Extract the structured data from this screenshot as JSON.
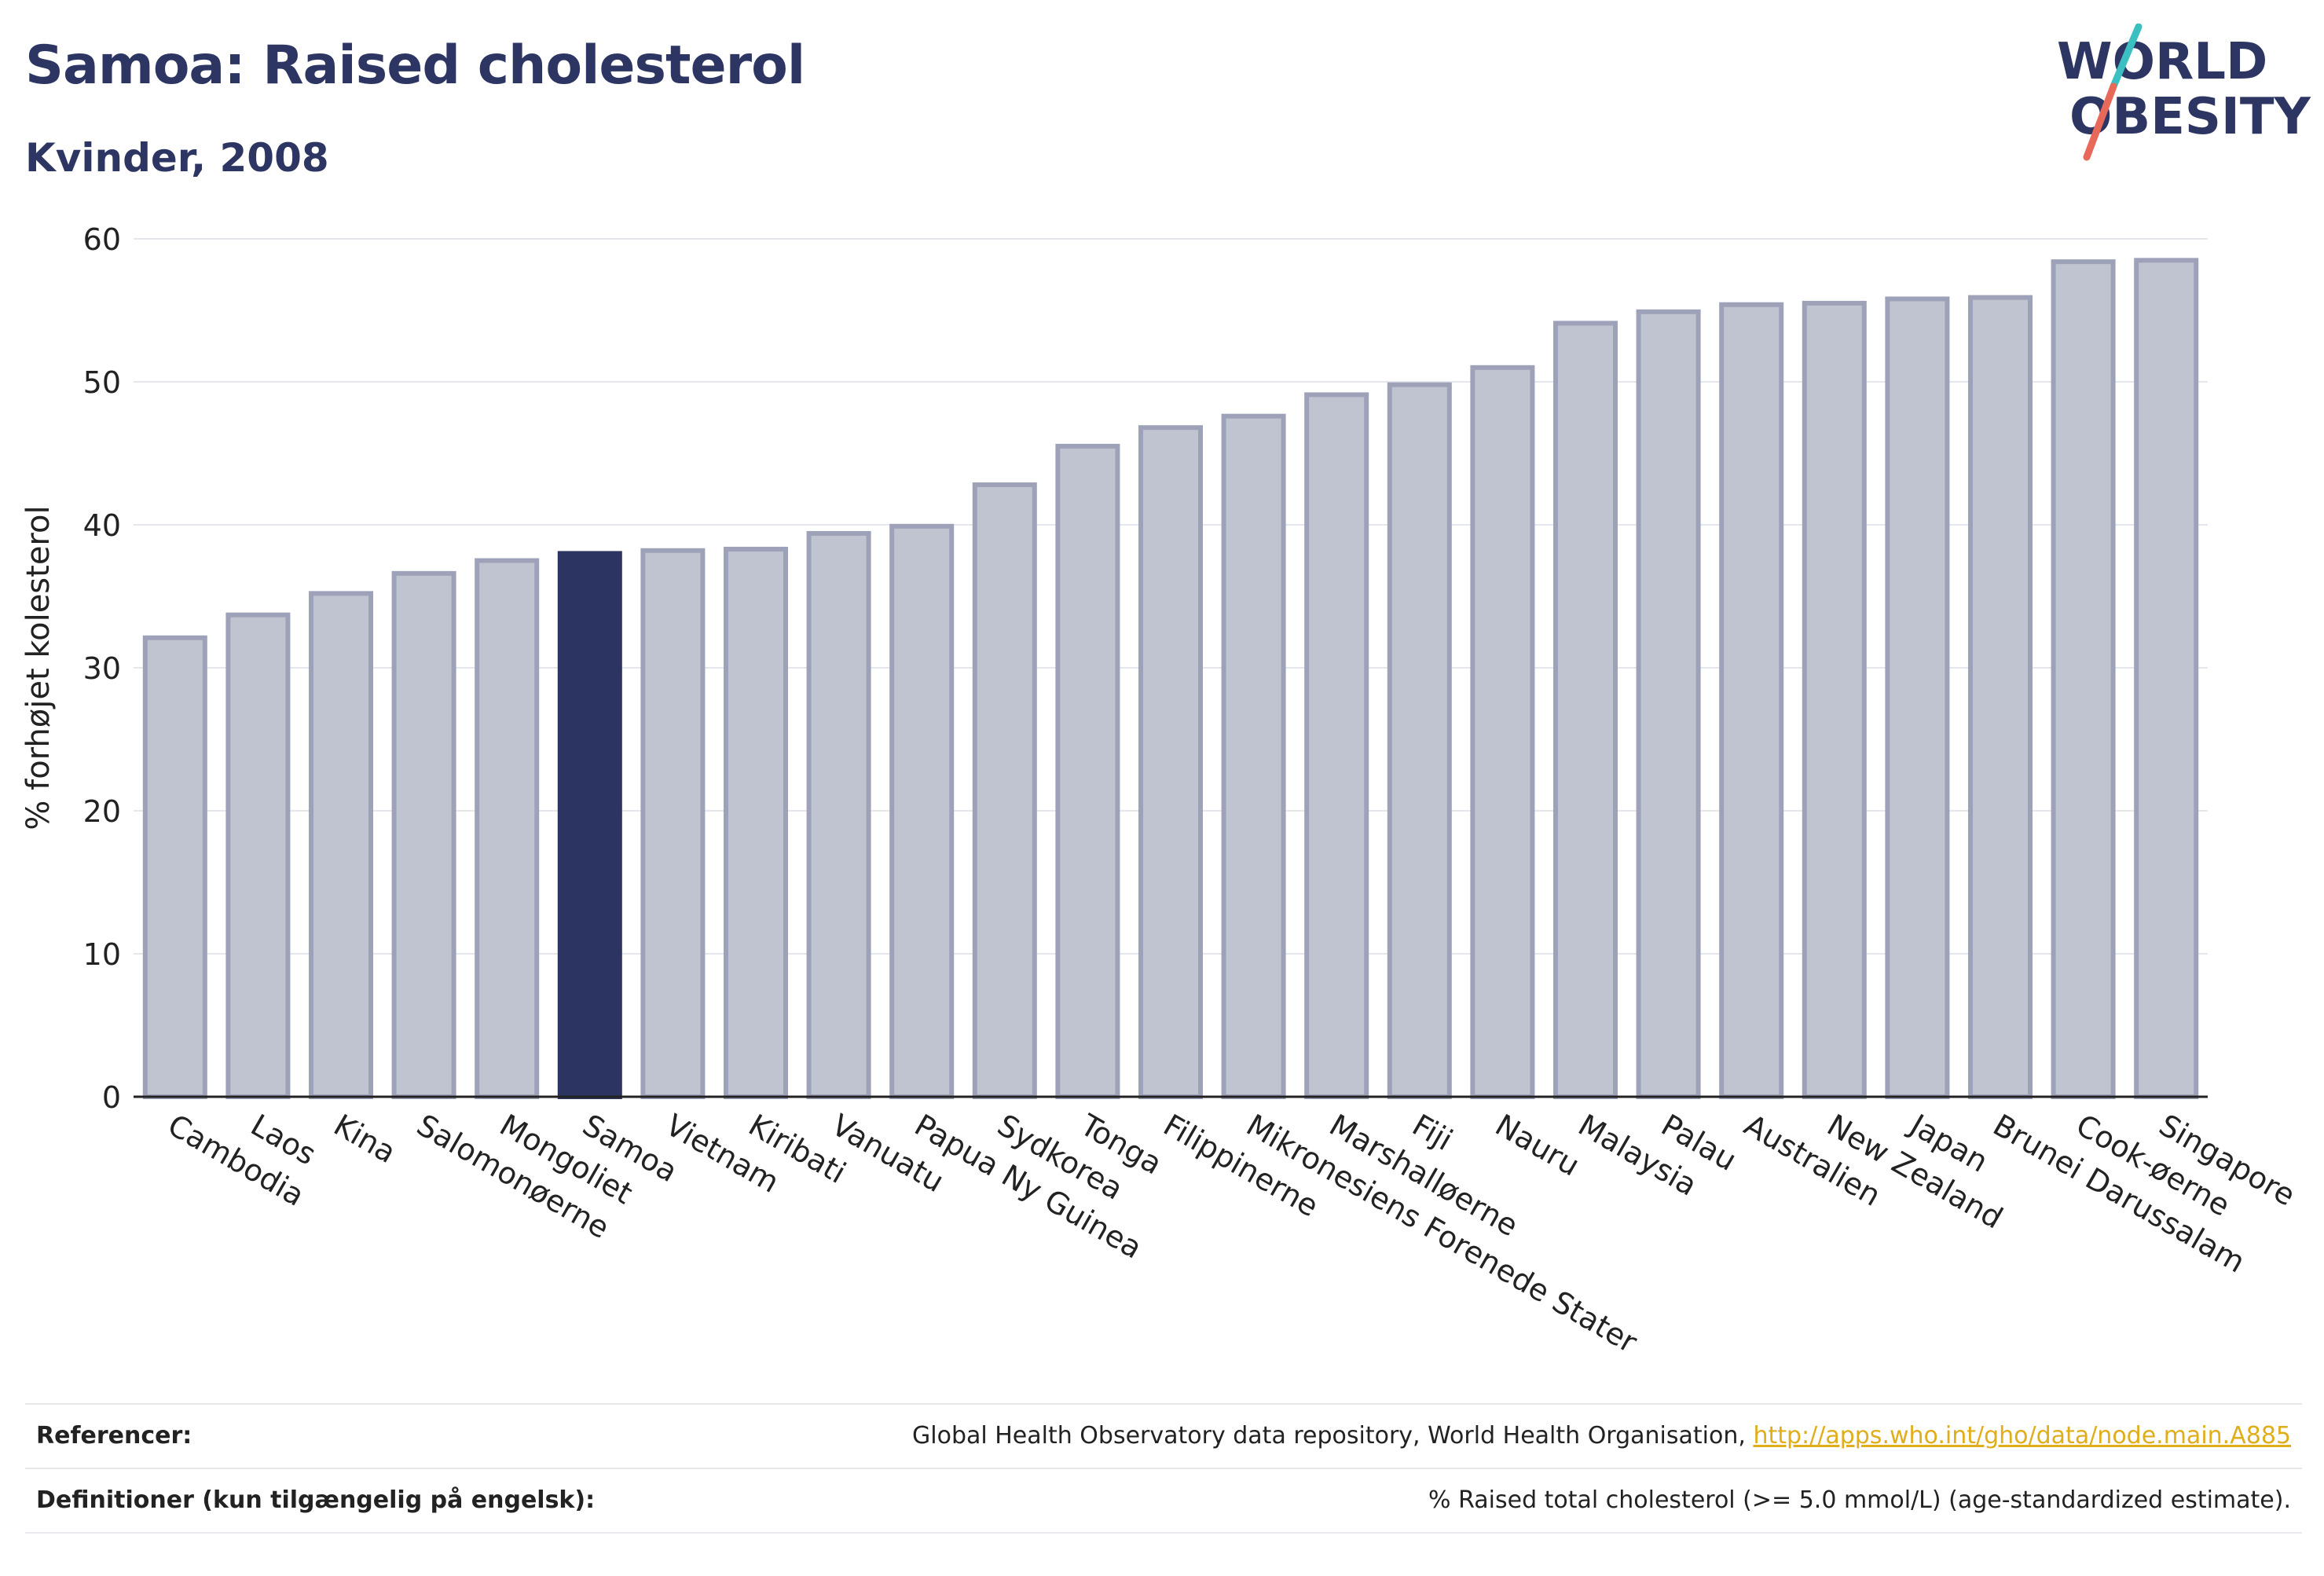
{
  "header": {
    "title": "Samoa: Raised cholesterol",
    "subtitle": "Kvinder, 2008"
  },
  "logo": {
    "line1": "WORLD",
    "line2": "OBESITY",
    "text_color": "#2d3563",
    "slash_colors": [
      "#3bbfc0",
      "#e8685a"
    ]
  },
  "chart_data": {
    "type": "bar",
    "ylabel": "% forhøjet kolesterol",
    "xlabel": "",
    "ylim": [
      0,
      60
    ],
    "yticks": [
      0,
      10,
      20,
      30,
      40,
      50,
      60
    ],
    "grid": true,
    "highlight": "Samoa",
    "colors": {
      "bar": "#c0c3d0",
      "bar_border": "#9da2b8",
      "highlight": "#2c3562"
    },
    "categories": [
      "Cambodia",
      "Laos",
      "Kina",
      "Salomonøerne",
      "Mongoliet",
      "Samoa",
      "Vietnam",
      "Kiribati",
      "Vanuatu",
      "Papua Ny Guinea",
      "Sydkorea",
      "Tonga",
      "Filippinerne",
      "Mikronesiens Forenede Stater",
      "Marshalløerne",
      "Fiji",
      "Nauru",
      "Malaysia",
      "Palau",
      "Australien",
      "New Zealand",
      "Japan",
      "Brunei Darussalam",
      "Cook-øerne",
      "Singapore"
    ],
    "values": [
      32.1,
      33.7,
      35.2,
      36.6,
      37.5,
      38.0,
      38.2,
      38.3,
      39.4,
      39.9,
      42.8,
      45.5,
      46.8,
      47.6,
      49.1,
      49.8,
      51.0,
      54.1,
      54.9,
      55.4,
      55.5,
      55.8,
      55.9,
      58.4,
      58.5
    ]
  },
  "footer": {
    "references_label": "Referencer:",
    "references_text": "Global Health Observatory data repository, World Health Organisation, ",
    "references_link": "http://apps.who.int/gho/data/node.main.A885",
    "definitions_label": "Definitioner (kun tilgængelig på engelsk):",
    "definitions_text": "% Raised total cholesterol (>= 5.0 mmol/L) (age-standardized estimate)."
  }
}
